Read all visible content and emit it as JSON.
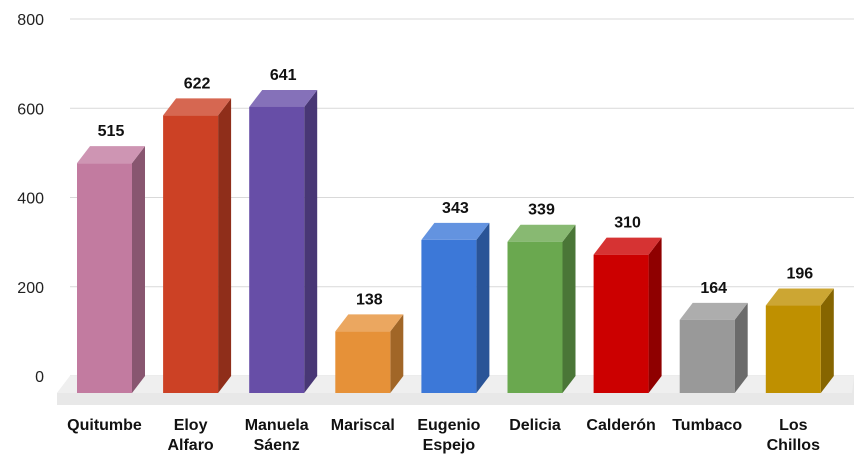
{
  "chart_data": {
    "type": "bar",
    "style": "3d",
    "categories": [
      [
        "Quitumbe"
      ],
      [
        "Eloy",
        "Alfaro"
      ],
      [
        "Manuela",
        "Sáenz"
      ],
      [
        "Mariscal"
      ],
      [
        "Eugenio",
        "Espejo"
      ],
      [
        "Delicia"
      ],
      [
        "Calderón"
      ],
      [
        "Tumbaco"
      ],
      [
        "Los",
        "Chillos"
      ]
    ],
    "values": [
      515,
      622,
      641,
      138,
      343,
      339,
      310,
      164,
      196
    ],
    "value_labels": [
      "515",
      "622",
      "641",
      "138",
      "343",
      "339",
      "310",
      "164",
      "196"
    ],
    "colors": [
      "#c27ba0",
      "#cc4125",
      "#674ea7",
      "#e69138",
      "#3c78d8",
      "#6aa84f",
      "#cc0000",
      "#999999",
      "#bf9000"
    ],
    "ylim": [
      0,
      800
    ],
    "yticks": [
      "0",
      "200",
      "400",
      "600",
      "800"
    ],
    "grid": true,
    "legend": "none",
    "title": "",
    "xlabel": "",
    "ylabel": ""
  }
}
